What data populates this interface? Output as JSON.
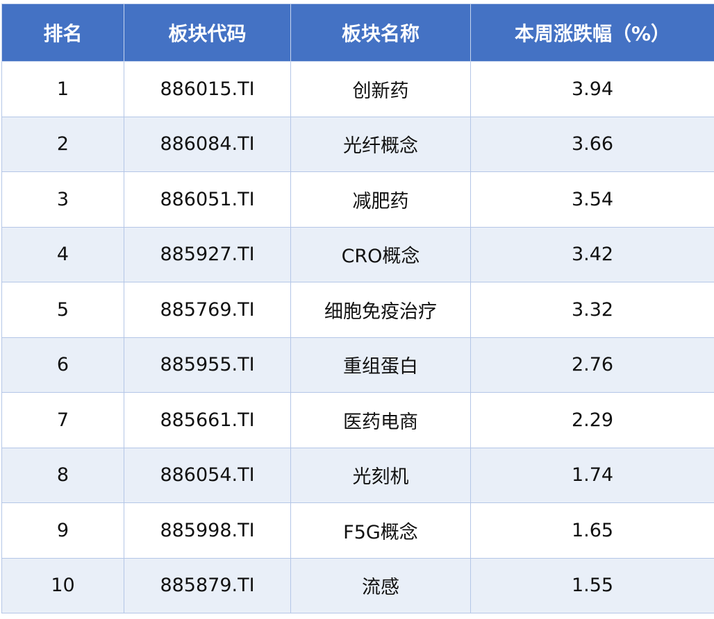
{
  "table": {
    "headers": [
      "排名",
      "板块代码",
      "板块名称",
      "本周涨跌幅（%）"
    ],
    "rows": [
      [
        "1",
        "886015.TI",
        "创新药",
        "3.94"
      ],
      [
        "2",
        "886084.TI",
        "光纤概念",
        "3.66"
      ],
      [
        "3",
        "886051.TI",
        "减肥药",
        "3.54"
      ],
      [
        "4",
        "885927.TI",
        "CRO概念",
        "3.42"
      ],
      [
        "5",
        "885769.TI",
        "细胞免疫治疗",
        "3.32"
      ],
      [
        "6",
        "885955.TI",
        "重组蛋白",
        "2.76"
      ],
      [
        "7",
        "885661.TI",
        "医药电商",
        "2.29"
      ],
      [
        "8",
        "886054.TI",
        "光刻机",
        "1.74"
      ],
      [
        "9",
        "885998.TI",
        "F5G概念",
        "1.65"
      ],
      [
        "10",
        "885879.TI",
        "流感",
        "1.55"
      ]
    ]
  },
  "colors": {
    "header_bg": "#4472c4",
    "alt_row_bg": "#e9eff8",
    "border": "#b4c6e7"
  }
}
